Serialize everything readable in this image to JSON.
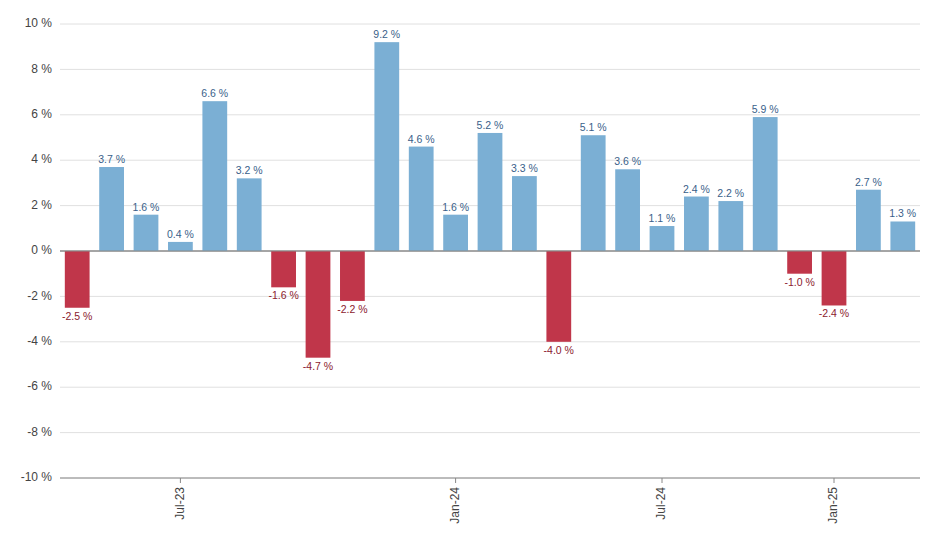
{
  "chart_data": {
    "type": "bar",
    "categories": [
      null,
      null,
      null,
      "Jul-23",
      null,
      null,
      null,
      null,
      null,
      null,
      null,
      "Jan-24",
      null,
      null,
      null,
      null,
      null,
      "Jul-24",
      null,
      null,
      null,
      null,
      "Jan-25",
      null,
      null
    ],
    "values": [
      -2.5,
      3.7,
      1.6,
      0.4,
      6.6,
      3.2,
      -1.6,
      -4.7,
      -2.2,
      9.2,
      4.6,
      1.6,
      5.2,
      3.3,
      -4.0,
      5.1,
      3.6,
      1.1,
      2.4,
      2.2,
      5.9,
      -1.0,
      -2.4,
      2.7,
      1.3
    ],
    "value_labels": [
      "-2.5 %",
      "3.7 %",
      "1.6 %",
      "0.4 %",
      "6.6 %",
      "3.2 %",
      "-1.6 %",
      "-4.7 %",
      "-2.2 %",
      "9.2 %",
      "4.6 %",
      "1.6 %",
      "5.2 %",
      "3.3 %",
      "-4.0 %",
      "5.1 %",
      "3.6 %",
      "1.1 %",
      "2.4 %",
      "2.2 %",
      "5.9 %",
      "-1.0 %",
      "-2.4 %",
      "2.7 %",
      "1.3 %"
    ],
    "colors": [
      "#c0364a",
      "#7bafd4",
      "#7bafd4",
      "#7bafd4",
      "#7bafd4",
      "#7bafd4",
      "#c0364a",
      "#c0364a",
      "#c0364a",
      "#7bafd4",
      "#7bafd4",
      "#7bafd4",
      "#7bafd4",
      "#7bafd4",
      "#c0364a",
      "#7bafd4",
      "#7bafd4",
      "#7bafd4",
      "#7bafd4",
      "#7bafd4",
      "#7bafd4",
      "#c0364a",
      "#c0364a",
      "#7bafd4",
      "#7bafd4"
    ],
    "ylim": [
      -10,
      10
    ],
    "yticks": [
      {
        "value": -10,
        "label": "-10 %"
      },
      {
        "value": -8,
        "label": "-8 %"
      },
      {
        "value": -6,
        "label": "-6 %"
      },
      {
        "value": -4,
        "label": "-4 %"
      },
      {
        "value": -2,
        "label": "-2 %"
      },
      {
        "value": 0,
        "label": "0 %"
      },
      {
        "value": 2,
        "label": "2 %"
      },
      {
        "value": 4,
        "label": "4 %"
      },
      {
        "value": 6,
        "label": "6 %"
      },
      {
        "value": 8,
        "label": "8 %"
      },
      {
        "value": 10,
        "label": "10 %"
      }
    ],
    "grid": true,
    "data_labels": true
  }
}
